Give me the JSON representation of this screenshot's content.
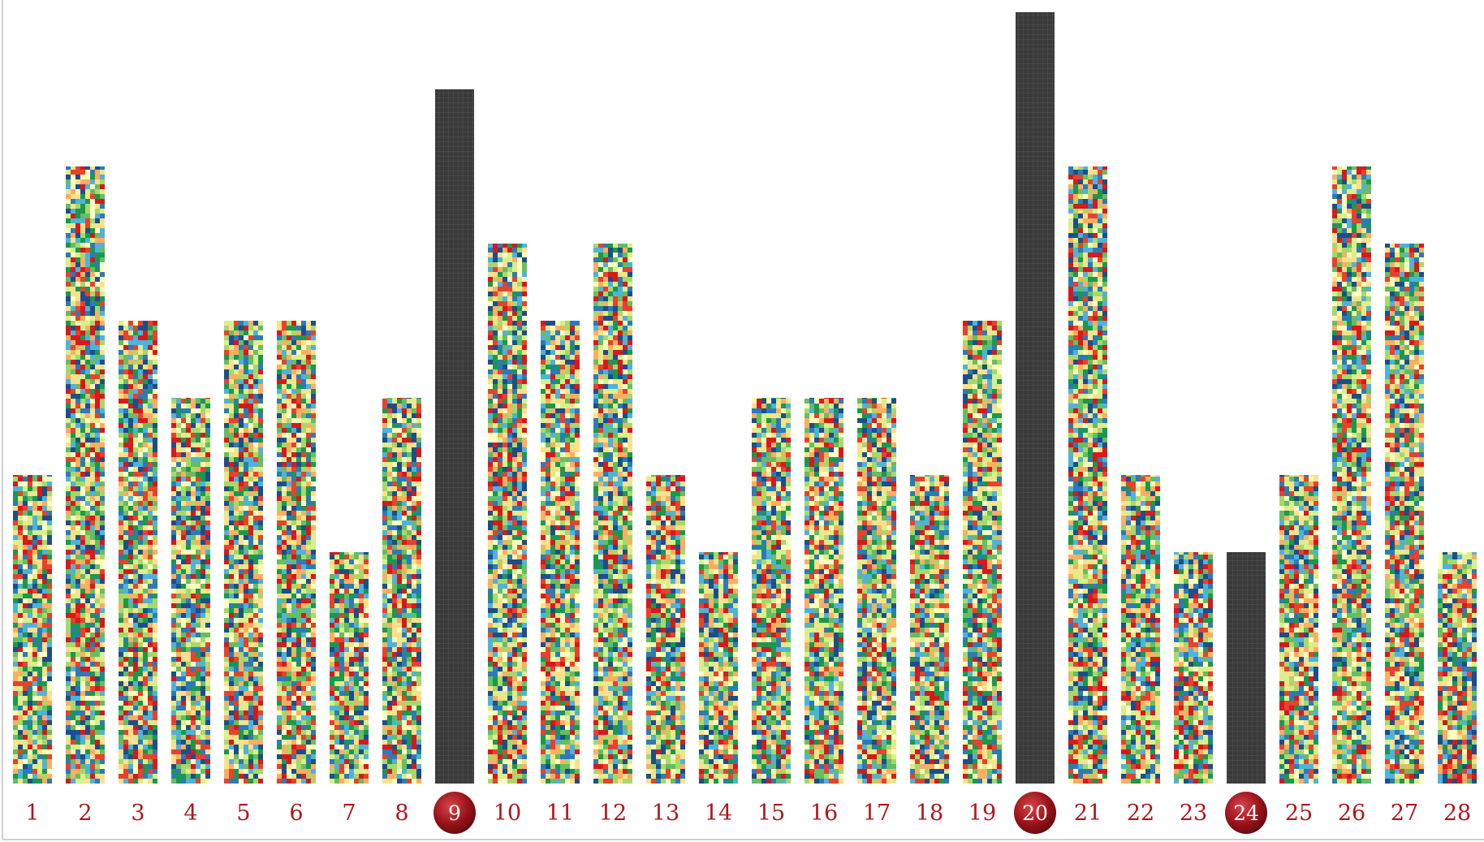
{
  "chart_data": {
    "type": "bar",
    "title": "",
    "xlabel": "",
    "ylabel": "",
    "categories": [
      "1",
      "2",
      "3",
      "4",
      "5",
      "6",
      "7",
      "8",
      "9",
      "10",
      "11",
      "12",
      "13",
      "14",
      "15",
      "16",
      "17",
      "18",
      "19",
      "20",
      "21",
      "22",
      "23",
      "24",
      "25",
      "26",
      "27",
      "28"
    ],
    "values": [
      4,
      8,
      6,
      5,
      6,
      6,
      3,
      5,
      9,
      7,
      6,
      7,
      4,
      3,
      5,
      5,
      5,
      4,
      6,
      10,
      8,
      4,
      3,
      3,
      4,
      8,
      7,
      3
    ],
    "highlighted": [
      "9",
      "20",
      "24"
    ],
    "ylim": [
      0,
      10
    ],
    "grid": false,
    "legend": "none",
    "colors": {
      "label": "#b0161b",
      "highlight_bar": "#3a3a3a",
      "highlight_badge": "#8e1218",
      "mosaic_palette": [
        "#d7191c",
        "#e8412c",
        "#fdae61",
        "#fee08b",
        "#ffffbf",
        "#d9ef8b",
        "#a6d96a",
        "#66bd63",
        "#1a9850",
        "#4fb3d9",
        "#2c7bb6",
        "#1d4e89"
      ]
    }
  }
}
